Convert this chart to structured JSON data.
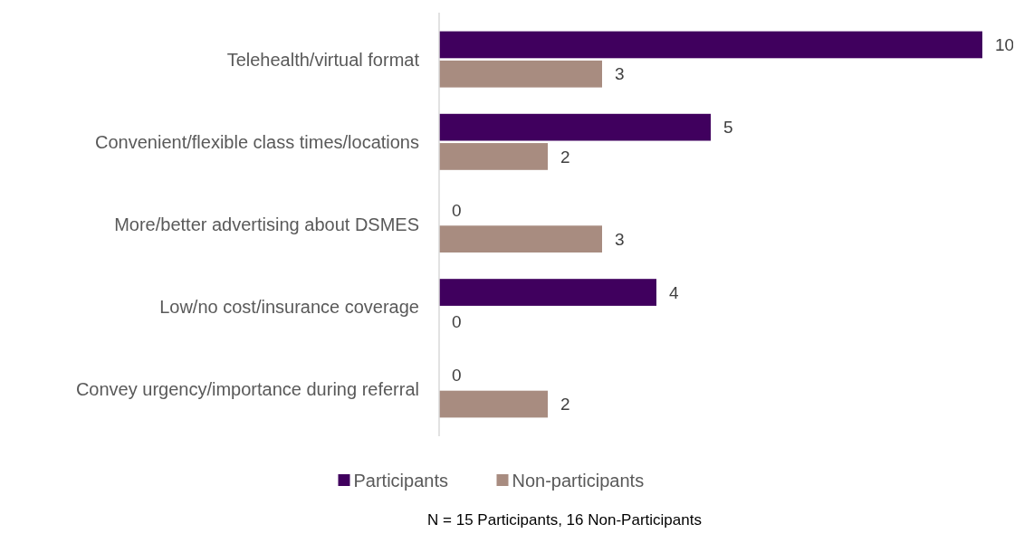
{
  "chart_data": {
    "type": "bar",
    "orientation": "horizontal",
    "categories": [
      "Telehealth/virtual format",
      "Convenient/flexible class times/locations",
      "More/better advertising about DSMES",
      "Low/no cost/insurance coverage",
      "Convey urgency/importance during referral"
    ],
    "series": [
      {
        "name": "Participants",
        "color": "#40005e",
        "values": [
          10,
          5,
          0,
          4,
          0
        ]
      },
      {
        "name": "Non-participants",
        "color": "#a88c80",
        "values": [
          3,
          2,
          3,
          0,
          2
        ]
      }
    ],
    "data_labels": true,
    "legend": "bottom",
    "grid": false,
    "annotations": [
      "N = 15 Participants, 16 Non-Participants"
    ]
  }
}
